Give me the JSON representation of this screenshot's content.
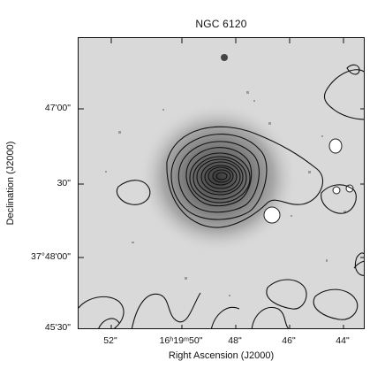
{
  "figure": {
    "title": "NGC 6120",
    "y_axis": {
      "title": "Declination (J2000)",
      "ticks": [
        "47'00\"",
        "30\"",
        "37°48'00\"",
        "45'30\""
      ]
    },
    "x_axis": {
      "title": "Right Ascension (J2000)",
      "ticks": [
        "52\"",
        "16ʰ19ᵐ50\"",
        "48\"",
        "46\"",
        "44\""
      ]
    }
  },
  "colors": {
    "background": "#d9d9d9",
    "halo": "#8a8a8a",
    "contour": "#111111",
    "stars": "#ffffff"
  }
}
